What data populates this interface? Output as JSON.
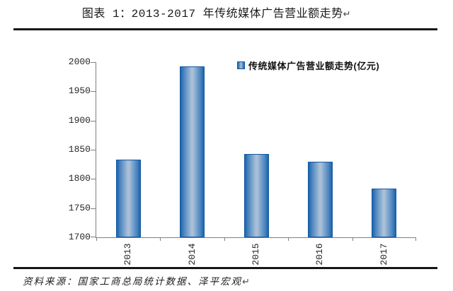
{
  "figure": {
    "title": "图表 1：2013-2017 年传统媒体广告营业额走势",
    "title_return_mark": "↵",
    "source": "资料来源：国家工商总局统计数据、泽平宏观",
    "source_return_mark": "↵"
  },
  "legend": {
    "label": "传统媒体广告营业额走势(亿元)"
  },
  "colors": {
    "bar_edge": "#1b64ad",
    "bar_center": "#a9c0d8",
    "bar_border": "#15589f",
    "axis_line": "#808080",
    "rule_line": "#161616"
  },
  "chart_data": {
    "type": "bar",
    "title": "2013-2017 年传统媒体广告营业额走势",
    "categories": [
      "2013",
      "2014",
      "2015",
      "2016",
      "2017"
    ],
    "values": [
      1833,
      1993,
      1843,
      1830,
      1783
    ],
    "series_name": "传统媒体广告营业额走势(亿元)",
    "unit": "亿元",
    "xlabel": "",
    "ylabel": "",
    "ylim": [
      1700,
      2000
    ],
    "yticks": [
      1700,
      1750,
      1800,
      1850,
      1900,
      1950,
      2000
    ],
    "grid": false,
    "legend_position": "top-right",
    "bar_orientation": "vertical",
    "x_label_rotation": -90
  }
}
